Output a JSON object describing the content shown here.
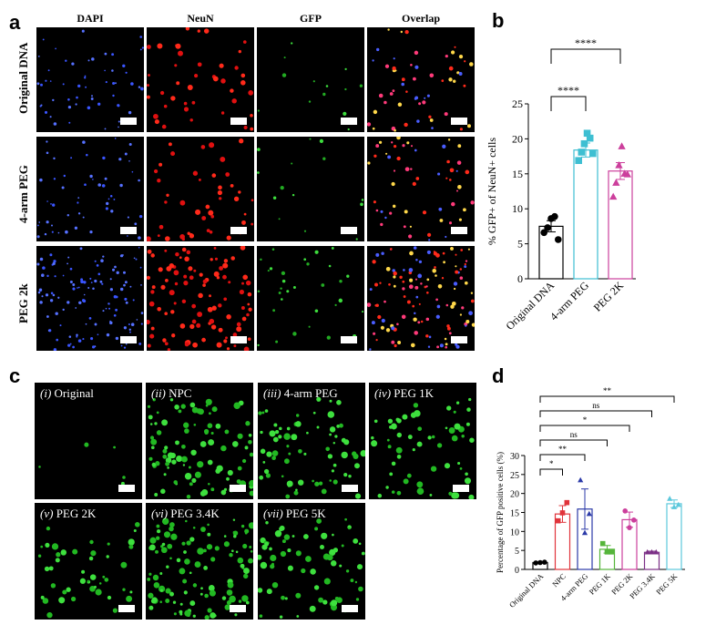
{
  "panel_a": {
    "letter": "a",
    "columns": [
      "DAPI",
      "NeuN",
      "GFP",
      "Overlap"
    ],
    "rows": [
      "Original DNA",
      "4-arm PEG",
      "PEG 2k"
    ]
  },
  "panel_b": {
    "letter": "b"
  },
  "panel_c": {
    "letter": "c",
    "images": [
      {
        "roman": "(i)",
        "name": "Original"
      },
      {
        "roman": "(ii)",
        "name": "NPC"
      },
      {
        "roman": "(iii)",
        "name": "4-arm PEG"
      },
      {
        "roman": "(iv)",
        "name": "PEG 1K"
      },
      {
        "roman": "(v)",
        "name": "PEG 2K"
      },
      {
        "roman": "(vi)",
        "name": "PEG 3.4K"
      },
      {
        "roman": "(vii)",
        "name": "PEG 5K"
      }
    ]
  },
  "panel_d": {
    "letter": "d"
  },
  "chart_data": [
    {
      "type": "bar",
      "panel": "b",
      "categories": [
        "Original DNA",
        "4-arm PEG",
        "PEG 2K"
      ],
      "values": [
        7.5,
        18.4,
        15.4
      ],
      "errors": [
        0.8,
        1.0,
        1.2
      ],
      "points": [
        [
          6.6,
          7.3,
          8.6,
          8.9,
          5.6
        ],
        [
          16.9,
          18.1,
          19.3,
          20.8,
          20.1,
          17.9
        ],
        [
          11.7,
          13.7,
          16.2,
          18.9,
          15.0,
          14.9
        ]
      ],
      "colors": [
        "#000000",
        "#3ebfd2",
        "#cc3f9c"
      ],
      "markers": [
        "circle",
        "square",
        "triangle"
      ],
      "ylabel": "% GFP+ of NeuN+ cells",
      "ylim": [
        0,
        25
      ],
      "yticks": [
        0,
        5,
        10,
        15,
        20,
        25
      ],
      "significance": [
        {
          "from": "Original DNA",
          "to": "4-arm PEG",
          "label": "****"
        },
        {
          "from": "Original DNA",
          "to": "PEG 2K",
          "label": "****"
        }
      ]
    },
    {
      "type": "bar",
      "panel": "d",
      "categories": [
        "Original DNA",
        "NPC",
        "4-arm PEG",
        "PEG 1K",
        "PEG 2K",
        "PEG 3.4K",
        "PEG 5K"
      ],
      "values": [
        1.8,
        14.6,
        15.9,
        5.3,
        13.1,
        4.5,
        17.3
      ],
      "errors": [
        0.1,
        2.2,
        5.3,
        1.0,
        2.0,
        0.3,
        1.0
      ],
      "points": [
        [
          1.7,
          1.8,
          1.9
        ],
        [
          12.8,
          14.9,
          17.6
        ],
        [
          23.5,
          9.6,
          14.6
        ],
        [
          6.8,
          4.6,
          4.6
        ],
        [
          15.4,
          11.0,
          13.0
        ],
        [
          4.5,
          4.5,
          4.5
        ],
        [
          18.6,
          16.4,
          17.0
        ]
      ],
      "colors": [
        "#000000",
        "#e0343b",
        "#2b3aa8",
        "#55b53a",
        "#cc3f9c",
        "#7b2f86",
        "#5cc8dc"
      ],
      "markers": [
        "circle",
        "square",
        "triangle",
        "square",
        "circle",
        "triangle",
        "triangle"
      ],
      "ylabel": "Percentage of GFP positive cells (%)",
      "ylim": [
        0,
        30
      ],
      "yticks": [
        0,
        5,
        10,
        15,
        20,
        25,
        30
      ],
      "significance": [
        {
          "from": "Original DNA",
          "to": "NPC",
          "label": "*"
        },
        {
          "from": "Original DNA",
          "to": "4-arm PEG",
          "label": "**"
        },
        {
          "from": "Original DNA",
          "to": "PEG 1K",
          "label": "ns"
        },
        {
          "from": "Original DNA",
          "to": "PEG 2K",
          "label": "*"
        },
        {
          "from": "Original DNA",
          "to": "PEG 3.4K",
          "label": "ns"
        },
        {
          "from": "Original DNA",
          "to": "PEG 5K",
          "label": "**"
        }
      ]
    }
  ]
}
